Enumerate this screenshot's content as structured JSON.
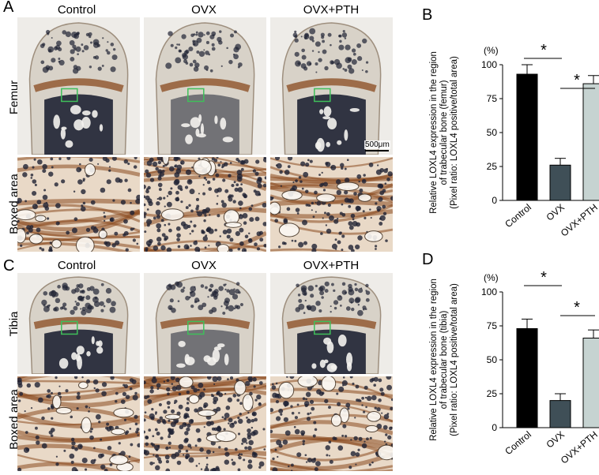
{
  "panels": {
    "A": "A",
    "B": "B",
    "C": "C",
    "D": "D"
  },
  "column_labels": [
    "Control",
    "OVX",
    "OVX+PTH"
  ],
  "row_labels": {
    "femur": "Femur",
    "femur_boxed": "Boxed area",
    "tibia": "Tibia",
    "tibia_boxed": "Boxed area"
  },
  "scale_bar": "500μm",
  "colors": {
    "control": "#000000",
    "ovx": "#3f4f57",
    "ovx_pth": "#c6d3d1",
    "stain_brown": "#8a4a1f",
    "stain_dark": "#1f2233",
    "box_green": "#3fbf5a"
  },
  "chart_data": [
    {
      "type": "bar",
      "panel": "B",
      "categories": [
        "Control",
        "OVX",
        "OVX+PTH"
      ],
      "values": [
        93,
        26,
        86
      ],
      "errors": [
        7,
        5,
        6
      ],
      "unit": "(%)",
      "ylabel_lines": [
        "Relative LOXL4 expression in the region",
        "of trabecular bone (femur)",
        "(Pixel ratio: LOXL4 positive/total area)"
      ],
      "yticks": [
        0,
        25,
        50,
        75,
        100
      ],
      "ylim": [
        0,
        100
      ],
      "significance": [
        {
          "from": 0,
          "to": 1,
          "label": "*"
        },
        {
          "from": 1,
          "to": 2,
          "label": "*"
        }
      ]
    },
    {
      "type": "bar",
      "panel": "D",
      "categories": [
        "Control",
        "OVX",
        "OVX+PTH"
      ],
      "values": [
        73,
        20,
        66
      ],
      "errors": [
        7,
        5,
        6
      ],
      "unit": "(%)",
      "ylabel_lines": [
        "Relative LOXL4 expression in the region",
        "of trabecular bone (tibia)",
        "(Pixel ratio: LOXL4 positive/total area)"
      ],
      "yticks": [
        0,
        25,
        50,
        75,
        100
      ],
      "ylim": [
        0,
        100
      ],
      "significance": [
        {
          "from": 0,
          "to": 1,
          "label": "*"
        },
        {
          "from": 1,
          "to": 2,
          "label": "*"
        }
      ]
    }
  ]
}
